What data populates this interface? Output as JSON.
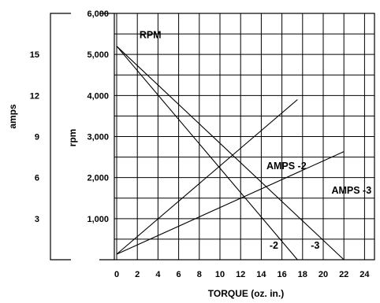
{
  "chart_data": {
    "type": "line",
    "title": "",
    "xlabel": "TORQUE (oz. in.)",
    "ylabel_left_outer": "amps",
    "ylabel_left_inner": "rpm",
    "x_ticks": [
      "0",
      "2",
      "4",
      "6",
      "8",
      "10",
      "12",
      "14",
      "16",
      "18",
      "20",
      "22",
      "24"
    ],
    "xlim": [
      0,
      25
    ],
    "rpm_ticks": [
      "1,000",
      "2,000",
      "3,000",
      "4,000",
      "5,000",
      "6,000"
    ],
    "rpm_lim": [
      0,
      6000
    ],
    "amps_ticks": [
      "3",
      "6",
      "9",
      "12",
      "15"
    ],
    "amps_lim": [
      0,
      18
    ],
    "grid": true,
    "series": [
      {
        "name": "RPM",
        "axis": "rpm",
        "x": [
          0,
          17.5
        ],
        "y": [
          5200,
          0
        ]
      },
      {
        "name": "",
        "axis": "rpm",
        "x": [
          0,
          22
        ],
        "y": [
          5200,
          0
        ]
      },
      {
        "name": "AMPS -2",
        "axis": "amps",
        "x": [
          0,
          17.5
        ],
        "y": [
          0.4,
          11.7
        ]
      },
      {
        "name": "AMPS -3",
        "axis": "amps",
        "x": [
          0,
          22
        ],
        "y": [
          0.4,
          7.9
        ]
      }
    ],
    "annotations": [
      {
        "text": "RPM",
        "x": 2.2,
        "y": 5400
      },
      {
        "text": "AMPS -2",
        "x": 14.5,
        "y": 2200
      },
      {
        "text": "AMPS -3",
        "x": 20.8,
        "y": 1610
      },
      {
        "text": "-2",
        "x": 14.8,
        "y": 270
      },
      {
        "text": "-3",
        "x": 18.8,
        "y": 270
      }
    ]
  }
}
